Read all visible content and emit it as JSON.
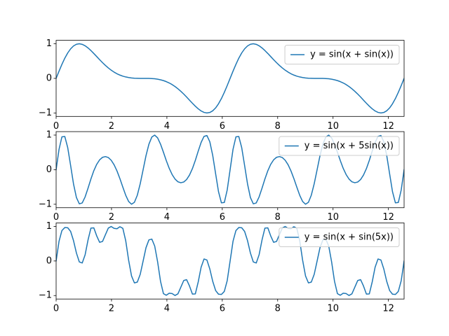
{
  "chart_data": [
    {
      "type": "line",
      "x": [
        0,
        0.105,
        0.209,
        0.314,
        0.419,
        0.524,
        0.628,
        0.733,
        0.838,
        0.942,
        1.047,
        1.152,
        1.257,
        1.361,
        1.466,
        1.571,
        1.676,
        1.78,
        1.885,
        1.99,
        2.094,
        2.199,
        2.304,
        2.409,
        2.513,
        2.618,
        2.723,
        2.827,
        2.932,
        3.037,
        3.142,
        3.246,
        3.351,
        3.456,
        3.56,
        3.665,
        3.77,
        3.875,
        3.979,
        4.084,
        4.189,
        4.294,
        4.398,
        4.503,
        4.608,
        4.712,
        4.817,
        4.922,
        5.027,
        5.131,
        5.236,
        5.341,
        5.445,
        5.55,
        5.655,
        5.76,
        5.864,
        5.969,
        6.074,
        6.178,
        6.283,
        6.388,
        6.493,
        6.597,
        6.702,
        6.807,
        6.912,
        7.016,
        7.121,
        7.226,
        7.33,
        7.435,
        7.54,
        7.645,
        7.749,
        7.854,
        7.959,
        8.063,
        8.168,
        8.273,
        8.378,
        8.482,
        8.587,
        8.692,
        8.796,
        8.901,
        9.006,
        9.111,
        9.215,
        9.32,
        9.425,
        9.529,
        9.634,
        9.739,
        9.844,
        9.948,
        10.053,
        10.158,
        10.263,
        10.367,
        10.472,
        10.577,
        10.681,
        10.786,
        10.891,
        10.996,
        11.1,
        11.205,
        11.31,
        11.414,
        11.519,
        11.624,
        11.729,
        11.833,
        11.938,
        12.043,
        12.147,
        12.252,
        12.357,
        12.462,
        12.566
      ],
      "series": [
        {
          "name": "y = sin(x + sin(x))",
          "color": "#1f77b4",
          "values": [
            0,
            0.208,
            0.405,
            0.584,
            0.735,
            0.854,
            0.938,
            0.986,
            1,
            0.984,
            0.942,
            0.88,
            0.804,
            0.719,
            0.63,
            0.54,
            0.454,
            0.374,
            0.301,
            0.236,
            0.18,
            0.133,
            0.095,
            0.064,
            0.041,
            0.024,
            0.012,
            0.005,
            0.002,
            0,
            0,
            0,
            -0.002,
            -0.005,
            -0.012,
            -0.024,
            -0.041,
            -0.064,
            -0.095,
            -0.133,
            -0.18,
            -0.236,
            -0.301,
            -0.374,
            -0.454,
            -0.54,
            -0.63,
            -0.719,
            -0.804,
            -0.88,
            -0.942,
            -0.984,
            -1,
            -0.986,
            -0.938,
            -0.854,
            -0.735,
            -0.584,
            -0.405,
            -0.208,
            0,
            0.208,
            0.405,
            0.584,
            0.735,
            0.854,
            0.938,
            0.986,
            1,
            0.984,
            0.942,
            0.88,
            0.804,
            0.719,
            0.63,
            0.54,
            0.454,
            0.374,
            0.301,
            0.236,
            0.18,
            0.133,
            0.095,
            0.064,
            0.041,
            0.024,
            0.012,
            0.005,
            0.002,
            0,
            0,
            0,
            -0.002,
            -0.005,
            -0.012,
            -0.024,
            -0.041,
            -0.064,
            -0.095,
            -0.133,
            -0.18,
            -0.236,
            -0.301,
            -0.374,
            -0.454,
            -0.54,
            -0.63,
            -0.719,
            -0.804,
            -0.88,
            -0.942,
            -0.984,
            -1,
            -0.986,
            -0.938,
            -0.854,
            -0.735,
            -0.584,
            -0.405,
            -0.208,
            0
          ]
        }
      ],
      "xlim": [
        0,
        12.566
      ],
      "ylim": [
        -1.1,
        1.1
      ],
      "xticks": [
        0,
        2,
        4,
        6,
        8,
        10,
        12
      ],
      "yticks": [
        {
          "value": -1,
          "label": "−1"
        },
        0,
        1
      ],
      "legend": "upper right"
    },
    {
      "type": "line",
      "x": [
        0,
        0.105,
        0.209,
        0.314,
        0.419,
        0.524,
        0.628,
        0.733,
        0.838,
        0.942,
        1.047,
        1.152,
        1.257,
        1.361,
        1.466,
        1.571,
        1.676,
        1.78,
        1.885,
        1.99,
        2.094,
        2.199,
        2.304,
        2.409,
        2.513,
        2.618,
        2.723,
        2.827,
        2.932,
        3.037,
        3.142,
        3.246,
        3.351,
        3.456,
        3.56,
        3.665,
        3.77,
        3.875,
        3.979,
        4.084,
        4.189,
        4.294,
        4.398,
        4.503,
        4.608,
        4.712,
        4.817,
        4.922,
        5.027,
        5.131,
        5.236,
        5.341,
        5.445,
        5.55,
        5.655,
        5.76,
        5.864,
        5.969,
        6.074,
        6.178,
        6.283,
        6.388,
        6.493,
        6.597,
        6.702,
        6.807,
        6.912,
        7.016,
        7.121,
        7.226,
        7.33,
        7.435,
        7.54,
        7.645,
        7.749,
        7.854,
        7.959,
        8.063,
        8.168,
        8.273,
        8.378,
        8.482,
        8.587,
        8.692,
        8.796,
        8.901,
        9.006,
        9.111,
        9.215,
        9.32,
        9.425,
        9.529,
        9.634,
        9.739,
        9.844,
        9.948,
        10.053,
        10.158,
        10.263,
        10.367,
        10.472,
        10.577,
        10.681,
        10.786,
        10.891,
        10.996,
        11.1,
        11.205,
        11.31,
        11.414,
        11.519,
        11.624,
        11.729,
        11.833,
        11.938,
        12.043,
        12.147,
        12.252,
        12.357,
        12.462,
        12.566
      ],
      "series": [
        {
          "name": "y = sin(x + 5sin(x))",
          "color": "#1f77b4",
          "values": [
            0,
            0.587,
            0.949,
            0.959,
            0.636,
            0.118,
            -0.413,
            -0.806,
            -0.987,
            -0.962,
            -0.787,
            -0.536,
            -0.268,
            -0.031,
            0.155,
            0.284,
            0.357,
            0.378,
            0.35,
            0.271,
            0.141,
            -0.039,
            -0.261,
            -0.505,
            -0.739,
            -0.919,
            -0.999,
            -0.943,
            -0.738,
            -0.406,
            0,
            0.406,
            0.738,
            0.943,
            0.999,
            0.919,
            0.739,
            0.505,
            0.261,
            0.039,
            -0.141,
            -0.271,
            -0.35,
            -0.378,
            -0.357,
            -0.284,
            -0.155,
            0.031,
            0.268,
            0.536,
            0.787,
            0.962,
            0.987,
            0.806,
            0.413,
            -0.118,
            -0.636,
            -0.959,
            -0.949,
            -0.587,
            0,
            0.587,
            0.949,
            0.959,
            0.636,
            0.118,
            -0.413,
            -0.806,
            -0.987,
            -0.962,
            -0.787,
            -0.536,
            -0.268,
            -0.031,
            0.155,
            0.284,
            0.357,
            0.378,
            0.35,
            0.271,
            0.141,
            -0.039,
            -0.261,
            -0.505,
            -0.739,
            -0.919,
            -0.999,
            -0.943,
            -0.738,
            -0.406,
            0,
            0.406,
            0.738,
            0.943,
            0.999,
            0.919,
            0.739,
            0.505,
            0.261,
            0.039,
            -0.141,
            -0.271,
            -0.35,
            -0.378,
            -0.357,
            -0.284,
            -0.155,
            0.031,
            0.268,
            0.536,
            0.787,
            0.962,
            0.987,
            0.806,
            0.413,
            -0.118,
            -0.636,
            -0.959,
            -0.949,
            -0.587,
            0
          ]
        }
      ],
      "xlim": [
        0,
        12.566
      ],
      "ylim": [
        -1.1,
        1.1
      ],
      "xticks": [
        0,
        2,
        4,
        6,
        8,
        10,
        12
      ],
      "yticks": [
        {
          "value": -1,
          "label": "−1"
        },
        0,
        1
      ],
      "legend": "upper right"
    },
    {
      "type": "line",
      "x": [
        0,
        0.105,
        0.209,
        0.314,
        0.419,
        0.524,
        0.628,
        0.733,
        0.838,
        0.942,
        1.047,
        1.152,
        1.257,
        1.361,
        1.466,
        1.571,
        1.676,
        1.78,
        1.885,
        1.99,
        2.094,
        2.199,
        2.304,
        2.409,
        2.513,
        2.618,
        2.723,
        2.827,
        2.932,
        3.037,
        3.142,
        3.246,
        3.351,
        3.456,
        3.56,
        3.665,
        3.77,
        3.875,
        3.979,
        4.084,
        4.189,
        4.294,
        4.398,
        4.503,
        4.608,
        4.712,
        4.817,
        4.922,
        5.027,
        5.131,
        5.236,
        5.341,
        5.445,
        5.55,
        5.655,
        5.76,
        5.864,
        5.969,
        6.074,
        6.178,
        6.283,
        6.388,
        6.493,
        6.597,
        6.702,
        6.807,
        6.912,
        7.016,
        7.121,
        7.226,
        7.33,
        7.435,
        7.54,
        7.645,
        7.749,
        7.854,
        7.959,
        8.063,
        8.168,
        8.273,
        8.378,
        8.482,
        8.587,
        8.692,
        8.796,
        8.901,
        9.006,
        9.111,
        9.215,
        9.32,
        9.425,
        9.529,
        9.634,
        9.739,
        9.844,
        9.948,
        10.053,
        10.158,
        10.263,
        10.367,
        10.472,
        10.577,
        10.681,
        10.786,
        10.891,
        10.996,
        11.1,
        11.205,
        11.31,
        11.414,
        11.519,
        11.624,
        11.729,
        11.833,
        11.938,
        12.043,
        12.147,
        12.252,
        12.357,
        12.462,
        12.566
      ],
      "series": [
        {
          "name": "y = sin(x + sin(5x))",
          "color": "#1f77b4",
          "values": [
            0,
            0.569,
            0.88,
            0.967,
            0.96,
            0.854,
            0.588,
            0.231,
            -0.028,
            -0.058,
            0.18,
            0.607,
            0.951,
            0.958,
            0.724,
            0.54,
            0.565,
            0.759,
            0.951,
            0.997,
            0.942,
            0.932,
            0.991,
            0.944,
            0.588,
            0.024,
            -0.432,
            -0.633,
            -0.61,
            -0.385,
            0,
            0.385,
            0.61,
            0.633,
            0.432,
            -0.024,
            -0.588,
            -0.944,
            -0.991,
            -0.932,
            -0.942,
            -0.997,
            -0.951,
            -0.759,
            -0.565,
            -0.54,
            -0.724,
            -0.958,
            -0.951,
            -0.607,
            -0.18,
            0.058,
            0.028,
            -0.231,
            -0.588,
            -0.854,
            -0.96,
            -0.967,
            -0.88,
            -0.569,
            0,
            0.569,
            0.88,
            0.967,
            0.96,
            0.854,
            0.588,
            0.231,
            -0.028,
            -0.058,
            0.18,
            0.607,
            0.951,
            0.958,
            0.724,
            0.54,
            0.565,
            0.759,
            0.951,
            0.997,
            0.942,
            0.932,
            0.991,
            0.944,
            0.588,
            0.024,
            -0.432,
            -0.633,
            -0.61,
            -0.385,
            0,
            0.385,
            0.61,
            0.633,
            0.432,
            -0.024,
            -0.588,
            -0.944,
            -0.991,
            -0.932,
            -0.942,
            -0.997,
            -0.951,
            -0.759,
            -0.565,
            -0.54,
            -0.724,
            -0.958,
            -0.951,
            -0.607,
            -0.18,
            0.058,
            0.028,
            -0.231,
            -0.588,
            -0.854,
            -0.96,
            -0.967,
            -0.88,
            -0.569,
            0
          ]
        }
      ],
      "xlim": [
        0,
        12.566
      ],
      "ylim": [
        -1.1,
        1.1
      ],
      "xticks": [
        0,
        2,
        4,
        6,
        8,
        10,
        12
      ],
      "yticks": [
        {
          "value": -1,
          "label": "−1"
        },
        0,
        1
      ],
      "legend": "upper right"
    }
  ]
}
